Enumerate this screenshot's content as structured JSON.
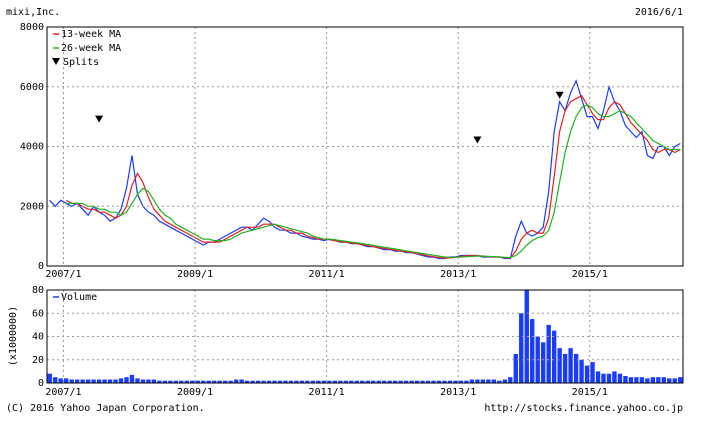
{
  "header": {
    "title": "mixi,Inc.",
    "date": "2016/6/1"
  },
  "footer": {
    "copyright": "(C) 2016 Yahoo Japan Corporation.",
    "url": "http://stocks.finance.yahoo.co.jp"
  },
  "chart_data": [
    {
      "type": "line",
      "x": [
        "2006/10",
        "2006/11",
        "2006/12",
        "2007/1",
        "2007/2",
        "2007/3",
        "2007/4",
        "2007/5",
        "2007/6",
        "2007/7",
        "2007/8",
        "2007/9",
        "2007/10",
        "2007/11",
        "2007/12",
        "2008/1",
        "2008/2",
        "2008/3",
        "2008/4",
        "2008/5",
        "2008/6",
        "2008/7",
        "2008/8",
        "2008/9",
        "2008/10",
        "2008/11",
        "2008/12",
        "2009/1",
        "2009/2",
        "2009/3",
        "2009/4",
        "2009/5",
        "2009/6",
        "2009/7",
        "2009/8",
        "2009/9",
        "2009/10",
        "2009/11",
        "2009/12",
        "2010/1",
        "2010/2",
        "2010/3",
        "2010/4",
        "2010/5",
        "2010/6",
        "2010/7",
        "2010/8",
        "2010/9",
        "2010/10",
        "2010/11",
        "2010/12",
        "2011/1",
        "2011/2",
        "2011/3",
        "2011/4",
        "2011/5",
        "2011/6",
        "2011/7",
        "2011/8",
        "2011/9",
        "2011/10",
        "2011/11",
        "2011/12",
        "2012/1",
        "2012/2",
        "2012/3",
        "2012/4",
        "2012/5",
        "2012/6",
        "2012/7",
        "2012/8",
        "2012/9",
        "2012/10",
        "2012/11",
        "2012/12",
        "2013/1",
        "2013/2",
        "2013/3",
        "2013/4",
        "2013/5",
        "2013/6",
        "2013/7",
        "2013/8",
        "2013/9",
        "2013/10",
        "2013/11",
        "2013/12",
        "2014/1",
        "2014/2",
        "2014/3",
        "2014/4",
        "2014/5",
        "2014/6",
        "2014/7",
        "2014/8",
        "2014/9",
        "2014/10",
        "2014/11",
        "2014/12",
        "2015/1",
        "2015/2",
        "2015/3",
        "2015/4",
        "2015/5",
        "2015/6",
        "2015/7",
        "2015/8",
        "2015/9",
        "2015/10",
        "2015/11",
        "2015/12",
        "2016/1",
        "2016/2",
        "2016/3",
        "2016/4",
        "2016/5"
      ],
      "series": [
        {
          "color": "#1a3cff",
          "values": [
            2200,
            2000,
            2200,
            2100,
            2000,
            2100,
            1900,
            1700,
            2000,
            1800,
            1700,
            1500,
            1600,
            1900,
            2600,
            3700,
            2400,
            2000,
            1800,
            1700,
            1500,
            1400,
            1300,
            1200,
            1100,
            1000,
            900,
            800,
            700,
            800,
            800,
            900,
            1000,
            1100,
            1200,
            1300,
            1300,
            1200,
            1400,
            1600,
            1500,
            1300,
            1200,
            1200,
            1100,
            1100,
            1000,
            950,
            900,
            900,
            850,
            900,
            850,
            800,
            800,
            750,
            750,
            700,
            650,
            650,
            600,
            550,
            550,
            500,
            500,
            450,
            450,
            400,
            350,
            300,
            300,
            250,
            250,
            300,
            300,
            350,
            350,
            350,
            350,
            300,
            300,
            300,
            300,
            250,
            250,
            1000,
            1500,
            1100,
            1000,
            1100,
            1300,
            2500,
            4500,
            5500,
            5200,
            5800,
            6200,
            5600,
            5000,
            5000,
            4600,
            5200,
            6000,
            5500,
            5200,
            4700,
            4500,
            4300,
            4500,
            3700,
            3600,
            4000,
            4000,
            3700,
            4000,
            4100
          ]
        },
        {
          "name": "13-week MA",
          "color": "#e02020",
          "values": [
            null,
            null,
            null,
            2200,
            2100,
            2100,
            2000,
            1900,
            1900,
            1800,
            1800,
            1700,
            1600,
            1700,
            2000,
            2700,
            3100,
            2800,
            2300,
            1900,
            1700,
            1500,
            1400,
            1300,
            1200,
            1100,
            1000,
            900,
            800,
            800,
            800,
            800,
            900,
            1000,
            1100,
            1200,
            1300,
            1300,
            1300,
            1400,
            1400,
            1400,
            1300,
            1200,
            1200,
            1100,
            1100,
            1000,
            950,
            900,
            900,
            880,
            850,
            820,
            800,
            770,
            750,
            720,
            680,
            650,
            620,
            590,
            560,
            530,
            500,
            480,
            450,
            420,
            380,
            340,
            310,
            280,
            260,
            270,
            290,
            320,
            340,
            350,
            350,
            330,
            310,
            300,
            300,
            280,
            260,
            500,
            900,
            1100,
            1200,
            1100,
            1100,
            1600,
            3000,
            4500,
            5200,
            5500,
            5600,
            5700,
            5400,
            5100,
            4900,
            4900,
            5300,
            5500,
            5400,
            5100,
            4800,
            4600,
            4400,
            4200,
            3900,
            3800,
            3900,
            3900,
            3800,
            3900
          ]
        },
        {
          "name": "26-week MA",
          "color": "#20b020",
          "values": [
            null,
            null,
            null,
            2100,
            2100,
            2100,
            2100,
            2000,
            2000,
            1900,
            1900,
            1800,
            1800,
            1700,
            1800,
            2100,
            2400,
            2600,
            2500,
            2200,
            1900,
            1700,
            1600,
            1400,
            1300,
            1200,
            1100,
            1000,
            900,
            900,
            850,
            850,
            850,
            900,
            1000,
            1100,
            1150,
            1200,
            1250,
            1300,
            1350,
            1400,
            1350,
            1300,
            1250,
            1200,
            1150,
            1100,
            1000,
            950,
            900,
            900,
            880,
            850,
            830,
            800,
            780,
            750,
            720,
            690,
            660,
            630,
            600,
            570,
            540,
            510,
            480,
            450,
            420,
            390,
            360,
            330,
            300,
            290,
            290,
            300,
            310,
            320,
            330,
            330,
            320,
            310,
            300,
            290,
            280,
            350,
            500,
            700,
            850,
            950,
            1000,
            1200,
            1800,
            2800,
            3800,
            4500,
            5000,
            5300,
            5400,
            5300,
            5100,
            5000,
            5000,
            5100,
            5200,
            5100,
            5000,
            4800,
            4600,
            4400,
            4200,
            4100,
            4000,
            3900,
            3900,
            3900
          ]
        }
      ],
      "markers": {
        "name": "Splits",
        "color": "#000000",
        "x": [
          "2007/7",
          "2013/4",
          "2014/7"
        ],
        "values": [
          4900,
          4200,
          5700
        ]
      },
      "ylim": [
        0,
        8000
      ],
      "yticks": [
        0,
        2000,
        4000,
        6000,
        8000
      ],
      "xticks": [
        "2007/1",
        "2009/1",
        "2011/1",
        "2013/1",
        "2015/1"
      ],
      "grid": true
    },
    {
      "type": "bar",
      "ylabel": "(x1000000)",
      "x": [
        "2006/10",
        "2006/11",
        "2006/12",
        "2007/1",
        "2007/2",
        "2007/3",
        "2007/4",
        "2007/5",
        "2007/6",
        "2007/7",
        "2007/8",
        "2007/9",
        "2007/10",
        "2007/11",
        "2007/12",
        "2008/1",
        "2008/2",
        "2008/3",
        "2008/4",
        "2008/5",
        "2008/6",
        "2008/7",
        "2008/8",
        "2008/9",
        "2008/10",
        "2008/11",
        "2008/12",
        "2009/1",
        "2009/2",
        "2009/3",
        "2009/4",
        "2009/5",
        "2009/6",
        "2009/7",
        "2009/8",
        "2009/9",
        "2009/10",
        "2009/11",
        "2009/12",
        "2010/1",
        "2010/2",
        "2010/3",
        "2010/4",
        "2010/5",
        "2010/6",
        "2010/7",
        "2010/8",
        "2010/9",
        "2010/10",
        "2010/11",
        "2010/12",
        "2011/1",
        "2011/2",
        "2011/3",
        "2011/4",
        "2011/5",
        "2011/6",
        "2011/7",
        "2011/8",
        "2011/9",
        "2011/10",
        "2011/11",
        "2011/12",
        "2012/1",
        "2012/2",
        "2012/3",
        "2012/4",
        "2012/5",
        "2012/6",
        "2012/7",
        "2012/8",
        "2012/9",
        "2012/10",
        "2012/11",
        "2012/12",
        "2013/1",
        "2013/2",
        "2013/3",
        "2013/4",
        "2013/5",
        "2013/6",
        "2013/7",
        "2013/8",
        "2013/9",
        "2013/10",
        "2013/11",
        "2013/12",
        "2014/1",
        "2014/2",
        "2014/3",
        "2014/4",
        "2014/5",
        "2014/6",
        "2014/7",
        "2014/8",
        "2014/9",
        "2014/10",
        "2014/11",
        "2014/12",
        "2015/1",
        "2015/2",
        "2015/3",
        "2015/4",
        "2015/5",
        "2015/6",
        "2015/7",
        "2015/8",
        "2015/9",
        "2015/10",
        "2015/11",
        "2015/12",
        "2016/1",
        "2016/2",
        "2016/3",
        "2016/4",
        "2016/5"
      ],
      "series": [
        {
          "name": "Volume",
          "color": "#1a3cff",
          "values": [
            8,
            5,
            4,
            4,
            3,
            3,
            3,
            3,
            3,
            3,
            3,
            3,
            3,
            4,
            5,
            7,
            4,
            3,
            3,
            3,
            2,
            2,
            2,
            2,
            2,
            2,
            2,
            2,
            2,
            2,
            2,
            2,
            2,
            2,
            3,
            3,
            2,
            2,
            2,
            2,
            2,
            2,
            2,
            2,
            2,
            2,
            2,
            2,
            2,
            2,
            2,
            2,
            2,
            2,
            2,
            2,
            2,
            2,
            2,
            2,
            2,
            2,
            2,
            2,
            2,
            2,
            2,
            2,
            2,
            2,
            2,
            2,
            2,
            2,
            2,
            2,
            2,
            3,
            3,
            3,
            3,
            3,
            2,
            3,
            5,
            25,
            60,
            80,
            55,
            40,
            35,
            50,
            45,
            30,
            25,
            30,
            25,
            20,
            15,
            18,
            10,
            8,
            8,
            10,
            8,
            6,
            5,
            5,
            5,
            4,
            5,
            5,
            5,
            4,
            4,
            5
          ]
        }
      ],
      "ylim": [
        0,
        80
      ],
      "yticks": [
        0,
        20,
        40,
        60,
        80
      ],
      "xticks": [
        "2007/1",
        "2009/1",
        "2011/1",
        "2013/1",
        "2015/1"
      ],
      "grid": true
    }
  ]
}
